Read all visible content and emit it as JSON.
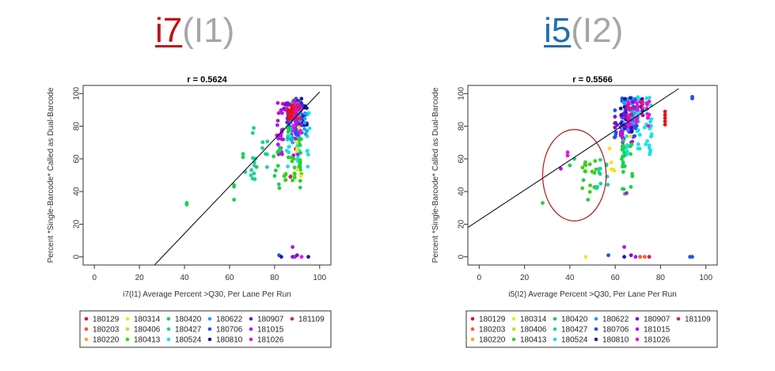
{
  "header": {
    "left": {
      "main": "i7",
      "sub": "(I1)"
    },
    "right": {
      "main": "i5",
      "sub": "(I2)"
    }
  },
  "colors": {
    "i7": "#c0121a",
    "i5": "#1f6fb2",
    "sub": "#a6a6a6",
    "annotation_ellipse": "#b01818"
  },
  "legend_entries": [
    {
      "label": "180129",
      "color": "#e8101a"
    },
    {
      "label": "180203",
      "color": "#ff5a14"
    },
    {
      "label": "180220",
      "color": "#ffa51a"
    },
    {
      "label": "180314",
      "color": "#f5e61a"
    },
    {
      "label": "180406",
      "color": "#b5e61a"
    },
    {
      "label": "180413",
      "color": "#3ccf1a"
    },
    {
      "label": "180420",
      "color": "#1ad24b"
    },
    {
      "label": "180427",
      "color": "#1ad29b"
    },
    {
      "label": "180524",
      "color": "#1ae1e1"
    },
    {
      "label": "180622",
      "color": "#1aa5f0"
    },
    {
      "label": "180706",
      "color": "#1a55f0"
    },
    {
      "label": "180810",
      "color": "#1a1ab4"
    },
    {
      "label": "180907",
      "color": "#7814c8"
    },
    {
      "label": "181015",
      "color": "#b414e6"
    },
    {
      "label": "181026",
      "color": "#e614dc"
    },
    {
      "label": "181109",
      "color": "#dc1482"
    }
  ],
  "chart_data": [
    {
      "type": "scatter",
      "title": "r = 0.5624",
      "xlabel": "i7(I1) Average Percent >Q30, Per Lane Per Run",
      "ylabel": "Percent *Single-Barcode* Called as Dual-Barcode",
      "xlim": [
        -5,
        105
      ],
      "ylim": [
        -5,
        105
      ],
      "xticks": [
        "0",
        "20",
        "40",
        "60",
        "80",
        "100"
      ],
      "yticks": [
        "0",
        "20",
        "40",
        "60",
        "80",
        "100"
      ],
      "fit_line": {
        "x": [
          26.7,
          100
        ],
        "y": [
          -5,
          101
        ]
      },
      "legend_placement": "bottom",
      "clusters": [
        {
          "series": "180524",
          "x": [
            82,
            95
          ],
          "y": [
            55,
            95
          ],
          "n": 60
        },
        {
          "series": "180706",
          "x": [
            84,
            95
          ],
          "y": [
            74,
            98
          ],
          "n": 45
        },
        {
          "series": "180810",
          "x": [
            84,
            94
          ],
          "y": [
            80,
            97
          ],
          "n": 25
        },
        {
          "series": "181015",
          "x": [
            81,
            91
          ],
          "y": [
            62,
            95
          ],
          "n": 45
        },
        {
          "series": "181026",
          "x": [
            84,
            92
          ],
          "y": [
            76,
            96
          ],
          "n": 40
        },
        {
          "series": "180907",
          "x": [
            82,
            92
          ],
          "y": [
            80,
            95
          ],
          "n": 20
        },
        {
          "series": "180622",
          "x": [
            85,
            95
          ],
          "y": [
            70,
            96
          ],
          "n": 25
        },
        {
          "series": "181109",
          "x": [
            86,
            92
          ],
          "y": [
            82,
            96
          ],
          "n": 20
        },
        {
          "series": "180129",
          "x": [
            86,
            92
          ],
          "y": [
            84,
            95
          ],
          "n": 12
        },
        {
          "series": "180420",
          "x": [
            78,
            92
          ],
          "y": [
            40,
            80
          ],
          "n": 25
        },
        {
          "series": "180413",
          "x": [
            84,
            92
          ],
          "y": [
            42,
            62
          ],
          "n": 18
        },
        {
          "series": "180427",
          "x": [
            70,
            82
          ],
          "y": [
            45,
            80
          ],
          "n": 14
        },
        {
          "series": "180314",
          "x": [
            86,
            93
          ],
          "y": [
            46,
            88
          ],
          "n": 6
        }
      ],
      "points": [
        {
          "series": "180420",
          "x": 41,
          "y": 33
        },
        {
          "series": "180420",
          "x": 41,
          "y": 32
        },
        {
          "series": "180420",
          "x": 62,
          "y": 44
        },
        {
          "series": "180420",
          "x": 62,
          "y": 43
        },
        {
          "series": "180420",
          "x": 62,
          "y": 35
        },
        {
          "series": "180420",
          "x": 66,
          "y": 63
        },
        {
          "series": "180420",
          "x": 66,
          "y": 61
        },
        {
          "series": "180427",
          "x": 67,
          "y": 52
        },
        {
          "series": "180427",
          "x": 71,
          "y": 58
        },
        {
          "series": "180427",
          "x": 71,
          "y": 56
        },
        {
          "series": "180420",
          "x": 72,
          "y": 55
        },
        {
          "series": "180427",
          "x": 76,
          "y": 63
        },
        {
          "series": "180524",
          "x": 87,
          "y": 74
        },
        {
          "series": "181015",
          "x": 88,
          "y": 6
        },
        {
          "series": "180706",
          "x": 82,
          "y": 1
        },
        {
          "series": "180810",
          "x": 83,
          "y": 0
        },
        {
          "series": "180907",
          "x": 88,
          "y": 0
        },
        {
          "series": "181015",
          "x": 89,
          "y": 0
        },
        {
          "series": "180907",
          "x": 90,
          "y": 1
        },
        {
          "series": "181026",
          "x": 92,
          "y": 0
        },
        {
          "series": "180810",
          "x": 95,
          "y": 0
        },
        {
          "series": "181109",
          "x": 87,
          "y": 49
        }
      ]
    },
    {
      "type": "scatter",
      "title": "r = 0.5566",
      "xlabel": "i5(I2) Average Percent >Q30, Per Lane Per Run",
      "ylabel": "Percent *Single-Barcode* Called as Dual-Barcode",
      "xlim": [
        -5,
        105
      ],
      "ylim": [
        -5,
        105
      ],
      "xticks": [
        "0",
        "20",
        "40",
        "60",
        "80",
        "100"
      ],
      "yticks": [
        "0",
        "20",
        "40",
        "60",
        "80",
        "100"
      ],
      "fit_line": {
        "x": [
          -5,
          88
        ],
        "y": [
          18,
          103
        ]
      },
      "legend_placement": "bottom",
      "annotation_ellipse": {
        "cx": 42,
        "cy": 50,
        "rx": 14,
        "ry": 28
      },
      "clusters": [
        {
          "series": "180706",
          "x": [
            58,
            70
          ],
          "y": [
            72,
            98
          ],
          "n": 35
        },
        {
          "series": "180524",
          "x": [
            62,
            77
          ],
          "y": [
            62,
            98
          ],
          "n": 55
        },
        {
          "series": "181015",
          "x": [
            60,
            68
          ],
          "y": [
            70,
            95
          ],
          "n": 40
        },
        {
          "series": "181026",
          "x": [
            64,
            76
          ],
          "y": [
            80,
            96
          ],
          "n": 35
        },
        {
          "series": "180622",
          "x": [
            62,
            74
          ],
          "y": [
            78,
            98
          ],
          "n": 20
        },
        {
          "series": "180810",
          "x": [
            62,
            72
          ],
          "y": [
            76,
            98
          ],
          "n": 18
        },
        {
          "series": "180907",
          "x": [
            60,
            70
          ],
          "y": [
            76,
            96
          ],
          "n": 12
        },
        {
          "series": "181109",
          "x": [
            64,
            74
          ],
          "y": [
            84,
            96
          ],
          "n": 12
        },
        {
          "series": "180420",
          "x": [
            56,
            70
          ],
          "y": [
            38,
            72
          ],
          "n": 25
        },
        {
          "series": "180413",
          "x": [
            44,
            56
          ],
          "y": [
            38,
            60
          ],
          "n": 16
        },
        {
          "series": "180427",
          "x": [
            52,
            62
          ],
          "y": [
            40,
            62
          ],
          "n": 12
        },
        {
          "series": "180314",
          "x": [
            56,
            68
          ],
          "y": [
            50,
            82
          ],
          "n": 6
        }
      ],
      "points": [
        {
          "series": "180420",
          "x": 28,
          "y": 33
        },
        {
          "series": "181015",
          "x": 36,
          "y": 54
        },
        {
          "series": "181026",
          "x": 39,
          "y": 64
        },
        {
          "series": "181026",
          "x": 39,
          "y": 62
        },
        {
          "series": "180420",
          "x": 40,
          "y": 56
        },
        {
          "series": "180427",
          "x": 42,
          "y": 60
        },
        {
          "series": "180420",
          "x": 48,
          "y": 35
        },
        {
          "series": "180420",
          "x": 46,
          "y": 47
        },
        {
          "series": "180314",
          "x": 47,
          "y": 0
        },
        {
          "series": "180129",
          "x": 82,
          "y": 89
        },
        {
          "series": "180129",
          "x": 82,
          "y": 87
        },
        {
          "series": "180129",
          "x": 82,
          "y": 85
        },
        {
          "series": "180129",
          "x": 82,
          "y": 83
        },
        {
          "series": "180129",
          "x": 82,
          "y": 81
        },
        {
          "series": "180706",
          "x": 94,
          "y": 98
        },
        {
          "series": "180706",
          "x": 94,
          "y": 97
        },
        {
          "series": "180706",
          "x": 94,
          "y": 0
        },
        {
          "series": "180706",
          "x": 93,
          "y": 0
        },
        {
          "series": "181015",
          "x": 64,
          "y": 6
        },
        {
          "series": "180706",
          "x": 57,
          "y": 1
        },
        {
          "series": "180810",
          "x": 64,
          "y": 0
        },
        {
          "series": "180907",
          "x": 67,
          "y": 1
        },
        {
          "series": "181015",
          "x": 69,
          "y": 0
        },
        {
          "series": "180203",
          "x": 71,
          "y": 0
        },
        {
          "series": "180203",
          "x": 73,
          "y": 0
        },
        {
          "series": "180220",
          "x": 75,
          "y": 0
        },
        {
          "series": "181109",
          "x": 75,
          "y": 0
        },
        {
          "series": "181015",
          "x": 65,
          "y": 39
        }
      ]
    }
  ]
}
